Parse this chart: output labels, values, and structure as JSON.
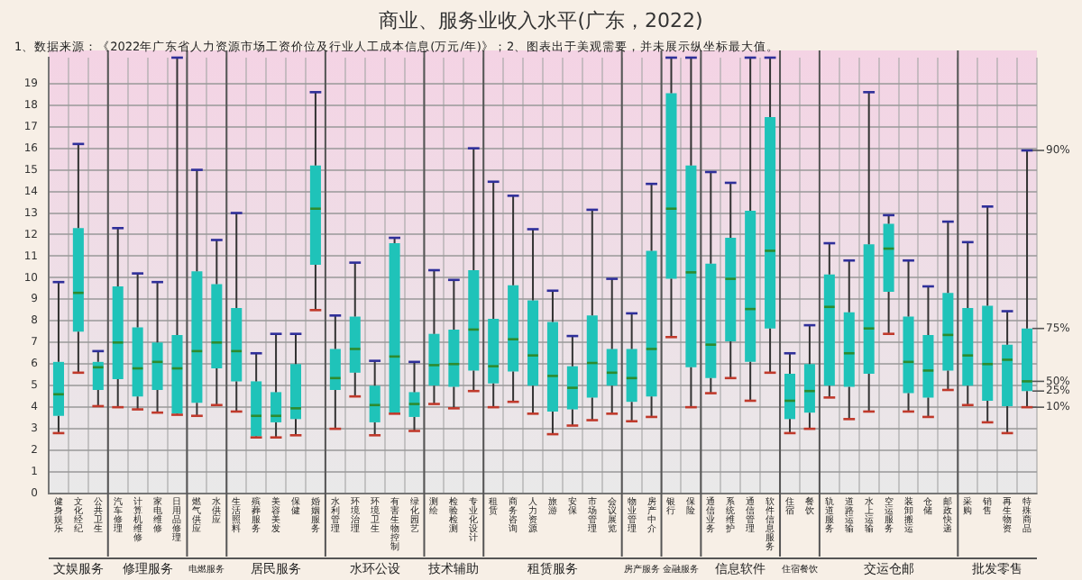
{
  "chart_data": {
    "type": "box",
    "title": "商业、服务业收入水平(广东，2022)",
    "subtitle": "1、数据来源：《2022年广东省人力资源市场工资价位及行业人工成本信息(万元/年)》；2、图表出于美观需要，并未展示纵坐标最大值。",
    "categories": [
      "健身娱乐",
      "文化经纪",
      "公共卫生",
      "汽车修理",
      "计算机维修",
      "家电维修",
      "日用品修理",
      "燃气供应",
      "水供应",
      "生活照料",
      "殡葬服务",
      "美容美发",
      "保健",
      "婚姻服务",
      "水利管理",
      "环境治理",
      "环境卫生",
      "有害生物控制",
      "绿化园艺",
      "测绘",
      "检验检测",
      "专业化设计",
      "租赁",
      "商务咨询",
      "人力资源",
      "旅游",
      "安保",
      "市场管理",
      "会议展览",
      "物业管理",
      "房产中介",
      "银行",
      "保险",
      "通信业务",
      "系统维护",
      "通信管理",
      "软件信息服务",
      "住宿",
      "餐饮",
      "轨道服务",
      "道路运输",
      "水上运输",
      "空运服务",
      "装卸搬运",
      "仓储",
      "邮政快递",
      "采购",
      "销售",
      "再生物资",
      "特殊商品"
    ],
    "color": "#1fc3b9",
    "boxes": [
      {
        "low": 2.8,
        "q1": 3.6,
        "median": 4.6,
        "q3": 6.1,
        "high": 9.8
      },
      {
        "low": 5.6,
        "q1": 7.5,
        "median": 9.3,
        "q3": 12.3,
        "high": 16.2
      },
      {
        "low": 4.05,
        "q1": 4.8,
        "median": 5.85,
        "q3": 6.1,
        "high": 6.6
      },
      {
        "low": 4.0,
        "q1": 5.3,
        "median": 7.0,
        "q3": 9.6,
        "high": 12.3
      },
      {
        "low": 3.9,
        "q1": 4.5,
        "median": 5.8,
        "q3": 7.7,
        "high": 10.2
      },
      {
        "low": 3.75,
        "q1": 4.8,
        "median": 6.1,
        "q3": 7.0,
        "high": 9.8
      },
      {
        "low": 3.65,
        "q1": 3.7,
        "median": 5.8,
        "q3": 7.35,
        "high": 20.2
      },
      {
        "low": 3.6,
        "q1": 4.2,
        "median": 6.6,
        "q3": 10.3,
        "high": 15.0
      },
      {
        "low": 4.1,
        "q1": 5.8,
        "median": 7.0,
        "q3": 9.7,
        "high": 11.75
      },
      {
        "low": 3.8,
        "q1": 5.2,
        "median": 6.6,
        "q3": 8.6,
        "high": 13.0
      },
      {
        "low": 2.6,
        "q1": 2.65,
        "median": 3.6,
        "q3": 5.2,
        "high": 6.5
      },
      {
        "low": 2.6,
        "q1": 3.3,
        "median": 3.6,
        "q3": 4.7,
        "high": 7.4
      },
      {
        "low": 2.7,
        "q1": 3.45,
        "median": 3.95,
        "q3": 6.0,
        "high": 7.4
      },
      {
        "low": 8.5,
        "q1": 10.6,
        "median": 13.2,
        "q3": 15.2,
        "high": 18.6
      },
      {
        "low": 3.0,
        "q1": 4.8,
        "median": 5.35,
        "q3": 6.7,
        "high": 8.25
      },
      {
        "low": 4.5,
        "q1": 5.6,
        "median": 6.7,
        "q3": 8.2,
        "high": 10.7
      },
      {
        "low": 2.7,
        "q1": 3.3,
        "median": 4.1,
        "q3": 5.0,
        "high": 6.15
      },
      {
        "low": 3.7,
        "q1": 3.75,
        "median": 6.35,
        "q3": 11.6,
        "high": 11.85
      },
      {
        "low": 2.9,
        "q1": 3.55,
        "median": 4.15,
        "q3": 4.7,
        "high": 6.1
      },
      {
        "low": 4.15,
        "q1": 5.0,
        "median": 5.95,
        "q3": 7.4,
        "high": 10.35
      },
      {
        "low": 3.95,
        "q1": 4.95,
        "median": 6.0,
        "q3": 7.6,
        "high": 9.9
      },
      {
        "low": 4.75,
        "q1": 5.7,
        "median": 7.6,
        "q3": 10.35,
        "high": 16.0
      },
      {
        "low": 4.0,
        "q1": 5.1,
        "median": 5.9,
        "q3": 8.1,
        "high": 14.45
      },
      {
        "low": 4.25,
        "q1": 5.65,
        "median": 7.15,
        "q3": 9.65,
        "high": 13.8
      },
      {
        "low": 3.7,
        "q1": 5.0,
        "median": 6.4,
        "q3": 8.95,
        "high": 12.25
      },
      {
        "low": 2.75,
        "q1": 3.8,
        "median": 5.45,
        "q3": 7.95,
        "high": 9.4
      },
      {
        "low": 3.15,
        "q1": 3.9,
        "median": 4.9,
        "q3": 5.9,
        "high": 7.3
      },
      {
        "low": 3.4,
        "q1": 4.45,
        "median": 6.05,
        "q3": 8.25,
        "high": 13.15
      },
      {
        "low": 3.7,
        "q1": 5.0,
        "median": 5.6,
        "q3": 6.7,
        "high": 9.95
      },
      {
        "low": 3.35,
        "q1": 4.25,
        "median": 5.35,
        "q3": 6.7,
        "high": 8.35
      },
      {
        "low": 3.55,
        "q1": 4.5,
        "median": 6.7,
        "q3": 11.25,
        "high": 14.35
      },
      {
        "low": 7.25,
        "q1": 9.95,
        "median": 13.2,
        "q3": 18.55,
        "high": 20.2
      },
      {
        "low": 4.0,
        "q1": 5.85,
        "median": 10.25,
        "q3": 15.2,
        "high": 20.2
      },
      {
        "low": 4.65,
        "q1": 5.35,
        "median": 6.9,
        "q3": 10.65,
        "high": 14.9
      },
      {
        "low": 5.35,
        "q1": 7.05,
        "median": 9.95,
        "q3": 11.85,
        "high": 14.4
      },
      {
        "low": 4.3,
        "q1": 6.1,
        "median": 8.55,
        "q3": 13.1,
        "high": 20.2
      },
      {
        "low": 5.6,
        "q1": 7.65,
        "median": 11.25,
        "q3": 17.45,
        "high": 20.2
      },
      {
        "low": 2.8,
        "q1": 3.45,
        "median": 4.3,
        "q3": 5.55,
        "high": 6.5
      },
      {
        "low": 3.0,
        "q1": 3.75,
        "median": 4.75,
        "q3": 6.0,
        "high": 7.8
      },
      {
        "low": 4.45,
        "q1": 5.0,
        "median": 8.65,
        "q3": 10.15,
        "high": 11.6
      },
      {
        "low": 3.45,
        "q1": 4.95,
        "median": 6.5,
        "q3": 8.4,
        "high": 10.8
      },
      {
        "low": 3.8,
        "q1": 5.55,
        "median": 7.65,
        "q3": 11.55,
        "high": 18.6
      },
      {
        "low": 7.4,
        "q1": 9.35,
        "median": 11.35,
        "q3": 12.5,
        "high": 12.9
      },
      {
        "low": 3.8,
        "q1": 4.65,
        "median": 6.1,
        "q3": 8.2,
        "high": 10.8
      },
      {
        "low": 3.55,
        "q1": 4.45,
        "median": 5.7,
        "q3": 7.35,
        "high": 9.6
      },
      {
        "low": 4.8,
        "q1": 5.7,
        "median": 7.35,
        "q3": 9.3,
        "high": 12.6
      },
      {
        "low": 4.1,
        "q1": 5.0,
        "median": 6.4,
        "q3": 8.6,
        "high": 11.65
      },
      {
        "low": 3.3,
        "q1": 4.3,
        "median": 6.0,
        "q3": 8.7,
        "high": 13.3
      },
      {
        "low": 2.8,
        "q1": 4.05,
        "median": 6.2,
        "q3": 6.9,
        "high": 8.45
      },
      {
        "low": 4.0,
        "q1": 4.75,
        "median": 5.2,
        "q3": 7.65,
        "high": 15.9
      }
    ],
    "ylim": [
      0,
      20.2
    ],
    "yticks": [
      0,
      1,
      2,
      3,
      4,
      5,
      6,
      7,
      8,
      9,
      10,
      11,
      12,
      13,
      14,
      15,
      16,
      17,
      18,
      19
    ],
    "grid": true,
    "annotations": [
      {
        "text": "90%",
        "x": "特殊商品",
        "y": 15.9
      },
      {
        "text": "75%",
        "x": "特殊商品",
        "y": 7.65
      },
      {
        "text": "50%",
        "x": "特殊商品",
        "y": 5.2
      },
      {
        "text": "25%",
        "x": "特殊商品",
        "y": 4.75
      },
      {
        "text": "10%",
        "x": "特殊商品",
        "y": 4.0
      },
      "文娱服务",
      "修理服务",
      "电燃服务",
      "居民服务",
      "水环公设",
      "技术辅助",
      "租赁服务",
      "房产服务",
      "金融服务",
      "信息软件",
      "住宿餐饮",
      "交运仓邮",
      "批发零售"
    ]
  }
}
